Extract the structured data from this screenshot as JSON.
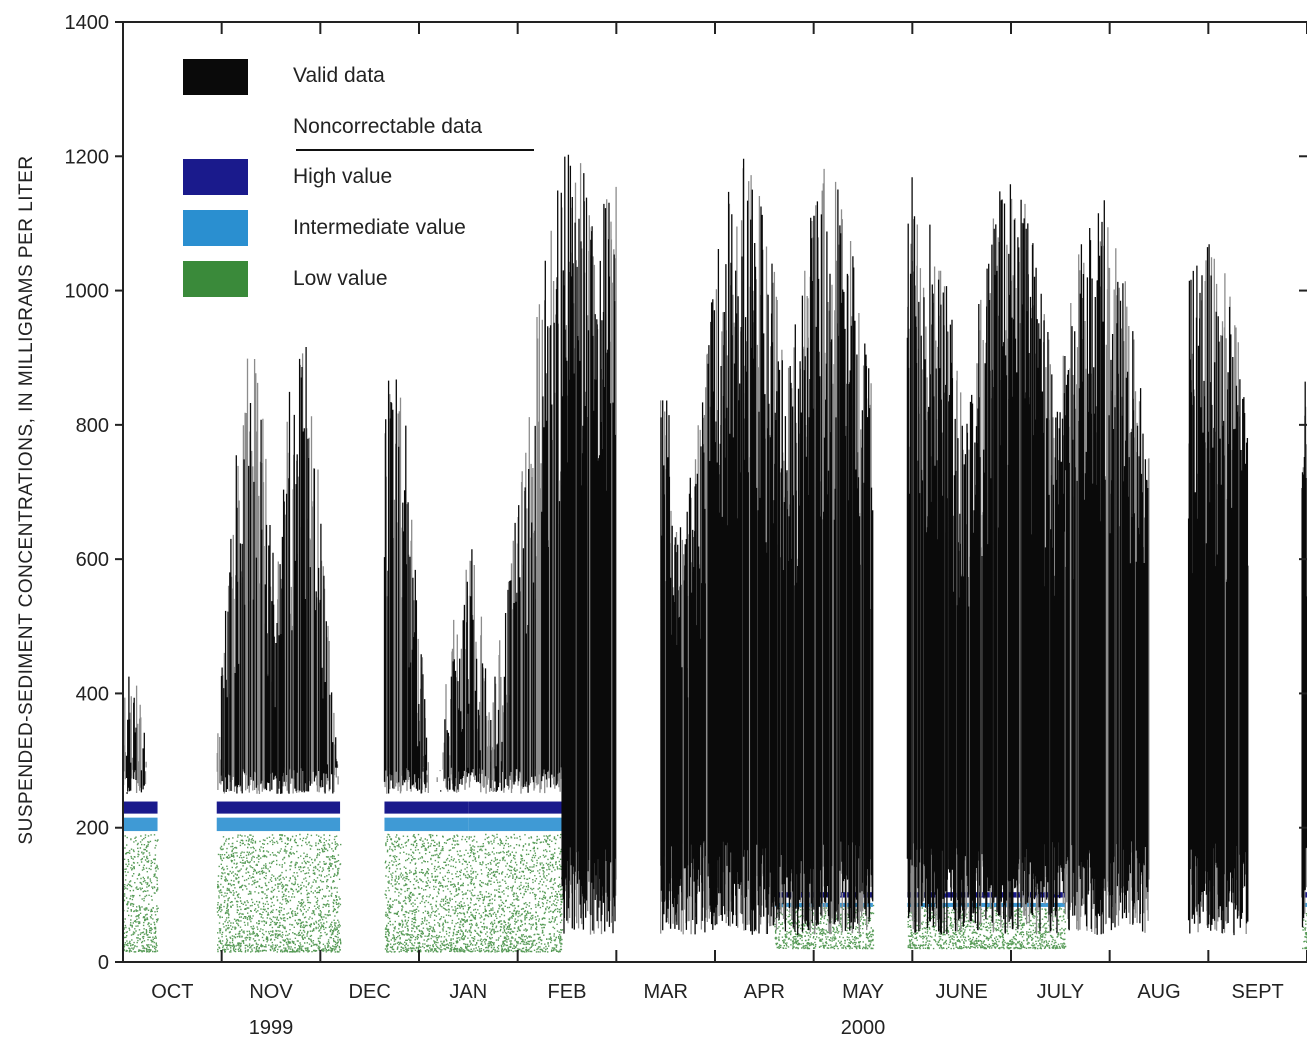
{
  "chart_data": {
    "type": "area",
    "ylabel": "SUSPENDED-SEDIMENT CONCENTRATIONS, IN MILLIGRAMS PER LITER",
    "ylim": [
      0,
      1400
    ],
    "y_ticks": [
      "0",
      "200",
      "400",
      "600",
      "800",
      "1000",
      "1200",
      "1400"
    ],
    "x_months": [
      "OCT",
      "NOV",
      "DEC",
      "JAN",
      "FEB",
      "MAR",
      "APR",
      "MAY",
      "JUNE",
      "JULY",
      "AUG",
      "SEPT"
    ],
    "x_range_months": [
      0,
      12
    ],
    "years": [
      {
        "label": "1999",
        "at_month": 1.5
      },
      {
        "label": "2000",
        "at_month": 7.5
      }
    ],
    "grid": false,
    "legend_position": "top-left",
    "legend": {
      "valid": "Valid data",
      "noncorrectable_header": "Noncorrectable data",
      "high": "High value",
      "intermediate": "Intermediate value",
      "low": "Low value"
    },
    "colors": {
      "valid": "#0a0a0a",
      "valid_light": "#8c8c8c",
      "high": "#1a1a8c",
      "intermediate": "#2a8fd0",
      "low": "#3a8a3a"
    },
    "series": [
      {
        "name": "Valid data",
        "note_peaks_mg_per_L": [
          {
            "month": 0.05,
            "value": 440
          },
          {
            "month": 1.3,
            "value": 910
          },
          {
            "month": 1.8,
            "value": 940
          },
          {
            "month": 2.75,
            "value": 890
          },
          {
            "month": 3.5,
            "value": 630
          },
          {
            "month": 4.15,
            "value": 780
          },
          {
            "month": 4.55,
            "value": 1210
          },
          {
            "month": 5.05,
            "value": 1200
          },
          {
            "month": 6.3,
            "value": 1200
          },
          {
            "month": 7.15,
            "value": 1190
          },
          {
            "month": 8.05,
            "value": 1180
          },
          {
            "month": 9.0,
            "value": 1185
          },
          {
            "month": 9.9,
            "value": 1140
          },
          {
            "month": 11.0,
            "value": 1080
          },
          {
            "month": 11.95,
            "value": 960
          }
        ],
        "segments_months": [
          [
            0.0,
            0.25
          ],
          [
            0.95,
            2.2
          ],
          [
            2.65,
            3.5
          ],
          [
            3.5,
            4.45
          ],
          [
            4.45,
            5.0
          ],
          [
            5.45,
            7.6
          ],
          [
            7.95,
            9.55
          ],
          [
            9.55,
            10.4
          ],
          [
            10.8,
            11.4
          ],
          [
            11.95,
            12.0
          ]
        ]
      },
      {
        "name": "High value",
        "level_mg_per_L": [
          230,
          100
        ],
        "segments_months": [
          [
            0.0,
            0.35
          ],
          [
            0.95,
            2.2
          ],
          [
            2.65,
            3.5
          ],
          [
            3.5,
            4.45
          ],
          [
            6.6,
            7.6
          ],
          [
            7.95,
            9.55
          ],
          [
            11.95,
            12.0
          ]
        ]
      },
      {
        "name": "Intermediate value",
        "level_mg_per_L": [
          205,
          85
        ],
        "segments_months": [
          [
            0.0,
            0.35
          ],
          [
            0.95,
            2.2
          ],
          [
            2.65,
            3.5
          ],
          [
            3.5,
            4.45
          ],
          [
            6.6,
            7.6
          ],
          [
            7.95,
            9.55
          ],
          [
            11.95,
            12.0
          ]
        ]
      },
      {
        "name": "Low value",
        "range_mg_per_L": [
          15,
          190
        ],
        "segments_months": [
          [
            0.0,
            0.35
          ],
          [
            0.95,
            2.2
          ],
          [
            2.65,
            3.5
          ],
          [
            3.5,
            4.45
          ],
          [
            6.6,
            7.6
          ],
          [
            7.95,
            9.55
          ],
          [
            11.95,
            12.0
          ]
        ]
      }
    ]
  }
}
